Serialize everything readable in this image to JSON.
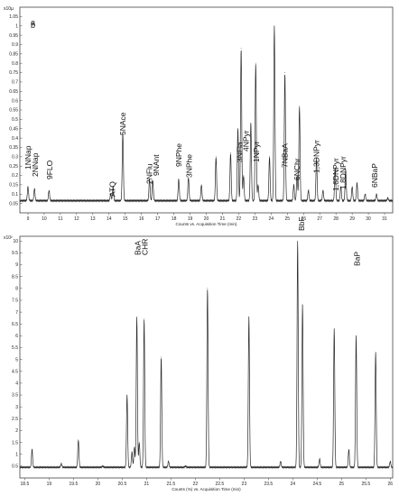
{
  "chart_data": [
    {
      "type": "line",
      "panel_label": "a",
      "y_exponent_label": "x10µ",
      "xlabel": "Counts vs. Acquisition Time (min)",
      "xlim": [
        8.5,
        31.5
      ],
      "ylim": [
        0,
        1.1
      ],
      "x_ticks": [
        9,
        10,
        11,
        12,
        13,
        14,
        15,
        16,
        17,
        18,
        19,
        20,
        21,
        22,
        23,
        24,
        25,
        26,
        27,
        28,
        29,
        30,
        31
      ],
      "y_ticks": [
        0.05,
        0.1,
        0.15,
        0.2,
        0.25,
        0.3,
        0.35,
        0.4,
        0.45,
        0.5,
        0.55,
        0.6,
        0.65,
        0.7,
        0.75,
        0.8,
        0.85,
        0.9,
        0.95,
        1,
        1.05
      ],
      "baseline": 0.065,
      "grid": false,
      "peaks": [
        {
          "x": 9.0,
          "y": 0.14
        },
        {
          "x": 9.4,
          "y": 0.13
        },
        {
          "x": 10.3,
          "y": 0.12
        },
        {
          "x": 14.1,
          "y": 0.1
        },
        {
          "x": 14.25,
          "y": 0.14
        },
        {
          "x": 14.85,
          "y": 0.43
        },
        {
          "x": 16.5,
          "y": 0.18
        },
        {
          "x": 16.7,
          "y": 0.17
        },
        {
          "x": 18.3,
          "y": 0.18
        },
        {
          "x": 18.9,
          "y": 0.19
        },
        {
          "x": 19.7,
          "y": 0.15
        },
        {
          "x": 20.6,
          "y": 0.3
        },
        {
          "x": 21.5,
          "y": 0.32
        },
        {
          "x": 21.95,
          "y": 0.45
        },
        {
          "x": 22.15,
          "y": 0.88
        },
        {
          "x": 22.3,
          "y": 0.2
        },
        {
          "x": 22.75,
          "y": 0.48
        },
        {
          "x": 23.05,
          "y": 0.8
        },
        {
          "x": 23.2,
          "y": 0.15
        },
        {
          "x": 23.9,
          "y": 0.3
        },
        {
          "x": 24.2,
          "y": 1.0
        },
        {
          "x": 24.85,
          "y": 0.75
        },
        {
          "x": 25.4,
          "y": 0.15
        },
        {
          "x": 25.6,
          "y": 0.2
        },
        {
          "x": 25.75,
          "y": 0.57
        },
        {
          "x": 26.3,
          "y": 0.12
        },
        {
          "x": 26.8,
          "y": 0.29
        },
        {
          "x": 27.2,
          "y": 0.12
        },
        {
          "x": 27.95,
          "y": 0.24
        },
        {
          "x": 28.3,
          "y": 0.14
        },
        {
          "x": 28.6,
          "y": 0.23
        },
        {
          "x": 29.0,
          "y": 0.14
        },
        {
          "x": 29.3,
          "y": 0.16
        },
        {
          "x": 29.8,
          "y": 0.1
        },
        {
          "x": 30.5,
          "y": 0.1
        },
        {
          "x": 31.2,
          "y": 0.08
        }
      ],
      "annotations": [
        {
          "text": "1NNap",
          "x": 9.0
        },
        {
          "text": "2NNap",
          "x": 9.45
        },
        {
          "text": "9FLO",
          "x": 10.35
        },
        {
          "text": "ATQ",
          "x": 14.2
        },
        {
          "text": "5NAce",
          "x": 14.85
        },
        {
          "text": "2NFlu",
          "x": 16.5
        },
        {
          "text": "9NAnt",
          "x": 16.9
        },
        {
          "text": "9NPhe",
          "x": 18.3
        },
        {
          "text": "3NPhe",
          "x": 18.95
        },
        {
          "text": "3NFla",
          "x": 22.05
        },
        {
          "text": "4NPyr",
          "x": 22.45
        },
        {
          "text": "1NPyr",
          "x": 23.1
        },
        {
          "text": "7NBaA",
          "x": 24.85
        },
        {
          "text": "6NChr",
          "x": 25.6
        },
        {
          "text": "1,3DNPyr",
          "x": 26.8
        },
        {
          "text": "1,6DNPyr",
          "x": 28.0
        },
        {
          "text": "1,8DNPyr",
          "x": 28.45
        },
        {
          "text": "6NBaP",
          "x": 30.4
        }
      ]
    },
    {
      "type": "line",
      "panel_label": "b",
      "y_exponent_label": "x10²",
      "xlabel": "Counts (%) vs. Acquisition Time (min)",
      "xlim": [
        18.4,
        26.05
      ],
      "ylim": [
        0,
        10.2
      ],
      "x_ticks": [
        18.5,
        19,
        19.5,
        20,
        20.5,
        21,
        21.5,
        22,
        22.5,
        23,
        23.5,
        24,
        24.5,
        25,
        25.5,
        26
      ],
      "y_ticks": [
        0.5,
        1,
        1.5,
        2,
        2.5,
        3,
        3.5,
        4,
        4.5,
        5,
        5.5,
        6,
        6.5,
        7,
        7.5,
        8,
        8.5,
        9,
        9.5,
        10
      ],
      "baseline": 0.45,
      "grid": false,
      "peaks": [
        {
          "x": 18.65,
          "y": 1.2
        },
        {
          "x": 19.25,
          "y": 0.6
        },
        {
          "x": 19.6,
          "y": 1.6
        },
        {
          "x": 20.1,
          "y": 0.5
        },
        {
          "x": 20.6,
          "y": 3.5
        },
        {
          "x": 20.7,
          "y": 1.1
        },
        {
          "x": 20.75,
          "y": 1.3
        },
        {
          "x": 20.8,
          "y": 6.8
        },
        {
          "x": 20.85,
          "y": 1.5
        },
        {
          "x": 20.95,
          "y": 6.7
        },
        {
          "x": 21.3,
          "y": 5.1
        },
        {
          "x": 21.45,
          "y": 0.7
        },
        {
          "x": 21.8,
          "y": 0.5
        },
        {
          "x": 22.25,
          "y": 8.0
        },
        {
          "x": 23.1,
          "y": 6.8
        },
        {
          "x": 23.75,
          "y": 0.7
        },
        {
          "x": 24.1,
          "y": 10.0
        },
        {
          "x": 24.2,
          "y": 7.3
        },
        {
          "x": 24.55,
          "y": 0.8
        },
        {
          "x": 24.85,
          "y": 6.3
        },
        {
          "x": 25.15,
          "y": 1.2
        },
        {
          "x": 25.3,
          "y": 6.0
        },
        {
          "x": 25.7,
          "y": 5.3
        },
        {
          "x": 26.0,
          "y": 0.7
        }
      ],
      "annotations": [
        {
          "text": "BaA",
          "x": 20.82
        },
        {
          "text": "CHR",
          "x": 20.97
        },
        {
          "text": "BbF",
          "x": 24.18
        },
        {
          "text": "BaP",
          "x": 25.32
        }
      ]
    }
  ]
}
